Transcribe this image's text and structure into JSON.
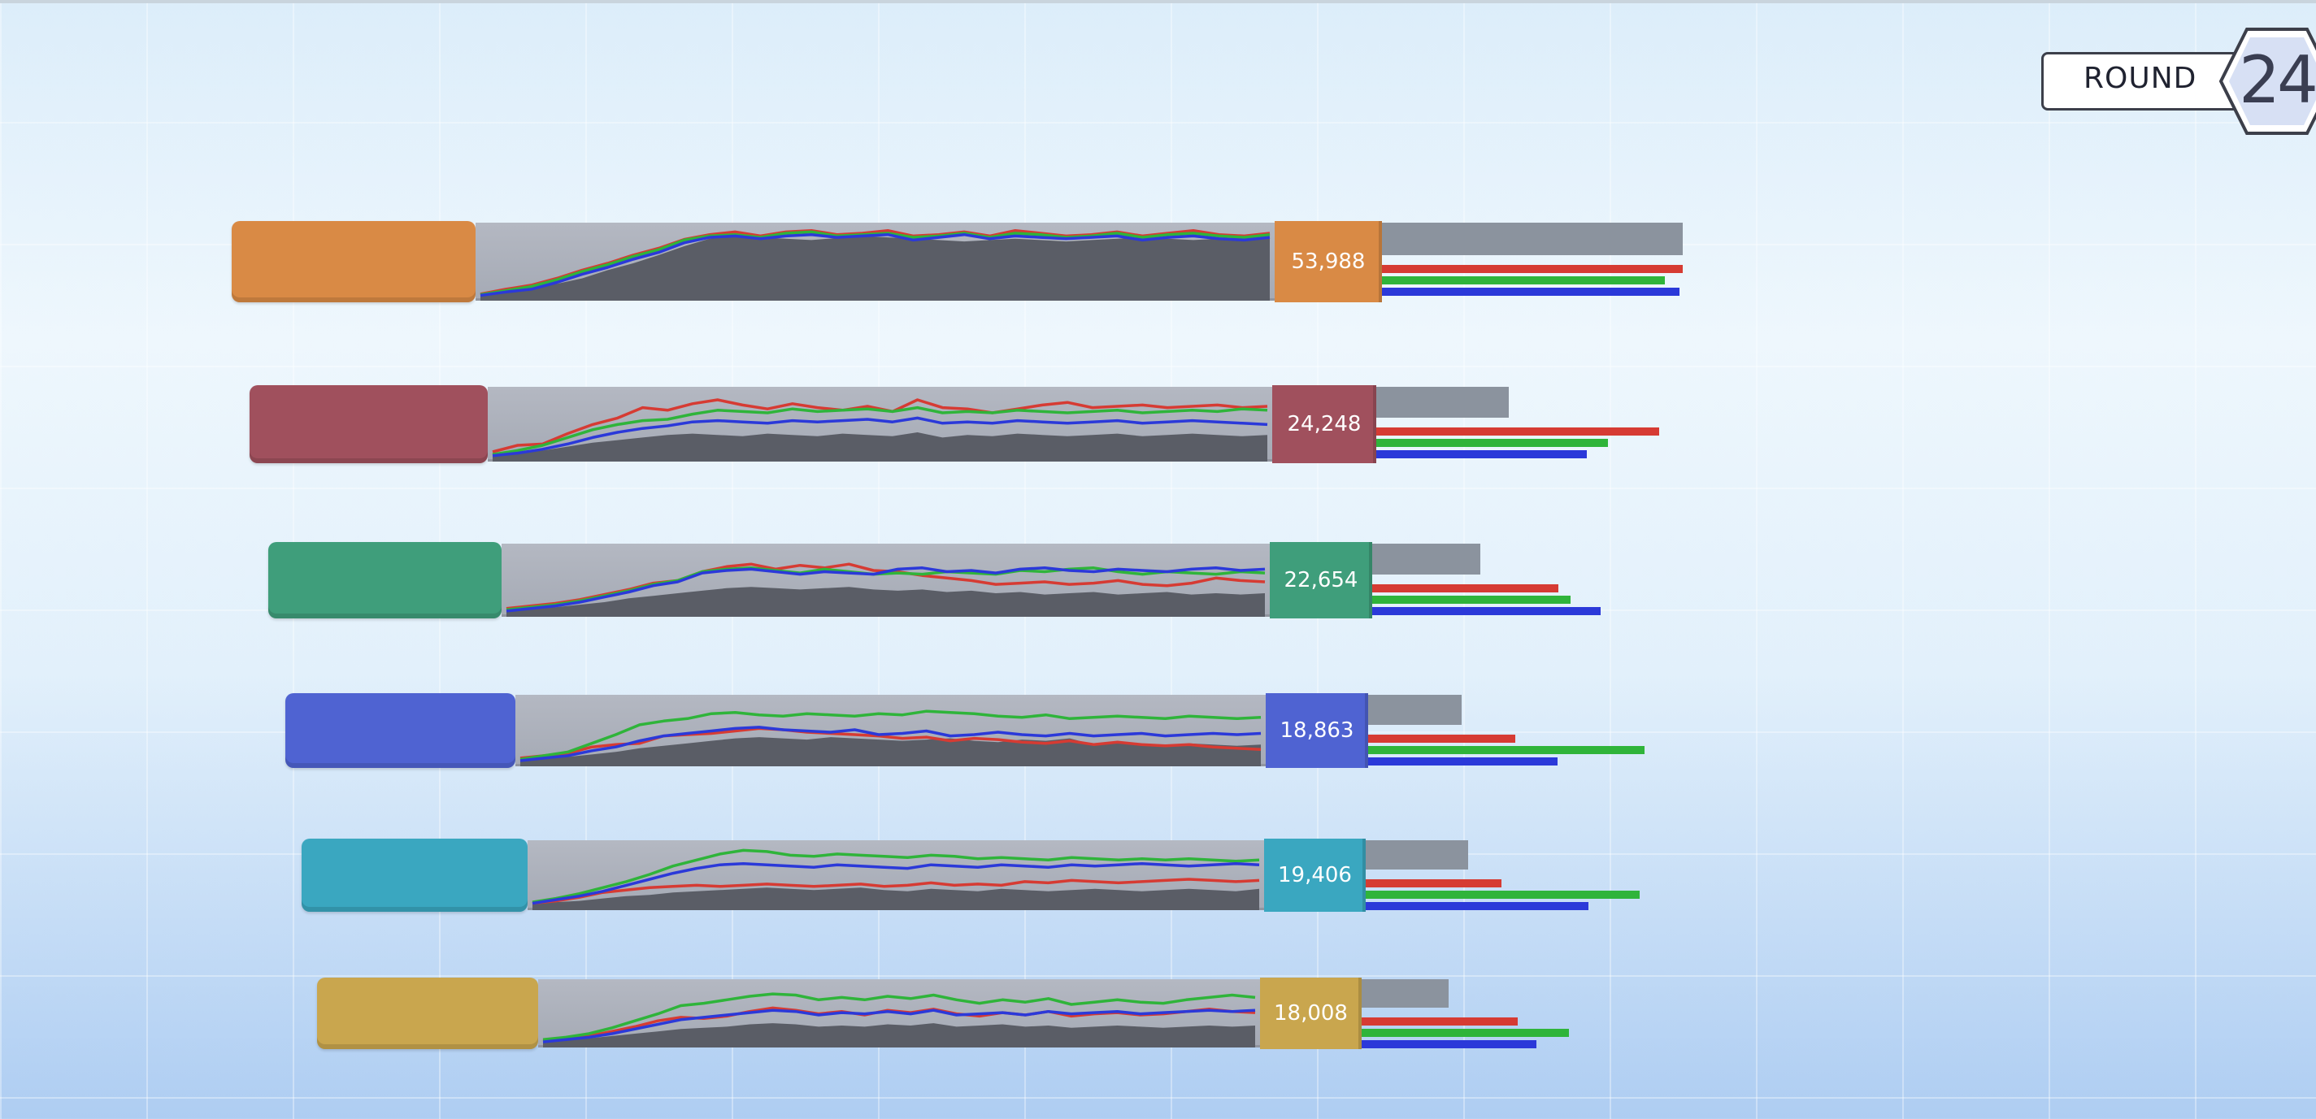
{
  "round": {
    "label": "ROUND",
    "number": "24"
  },
  "series_colors": {
    "gray": "#8b939e",
    "red": "#d63b33",
    "green": "#2fb43a",
    "blue": "#2b39d9"
  },
  "players": [
    {
      "color": "#d98a45",
      "score": "53,988",
      "metrics": {
        "gray": 1.0,
        "red": 1.0,
        "green": 0.94,
        "blue": 0.99
      },
      "history": {
        "area": [
          0.05,
          0.08,
          0.12,
          0.2,
          0.28,
          0.4,
          0.5,
          0.62,
          0.75,
          0.86,
          0.9,
          0.88,
          0.86,
          0.84,
          0.87,
          0.9,
          0.88,
          0.86,
          0.84,
          0.82,
          0.84,
          0.86,
          0.84,
          0.82,
          0.84,
          0.86,
          0.88,
          0.86,
          0.84,
          0.86,
          0.88,
          0.86
        ],
        "red": [
          0.05,
          0.12,
          0.18,
          0.28,
          0.4,
          0.5,
          0.62,
          0.72,
          0.85,
          0.92,
          0.96,
          0.9,
          0.96,
          0.98,
          0.92,
          0.94,
          0.98,
          0.9,
          0.92,
          0.96,
          0.9,
          0.98,
          0.94,
          0.9,
          0.92,
          0.96,
          0.9,
          0.94,
          0.98,
          0.92,
          0.9,
          0.94
        ],
        "green": [
          0.04,
          0.1,
          0.16,
          0.26,
          0.38,
          0.48,
          0.6,
          0.7,
          0.84,
          0.9,
          0.92,
          0.88,
          0.94,
          0.96,
          0.9,
          0.92,
          0.94,
          0.88,
          0.9,
          0.94,
          0.88,
          0.94,
          0.92,
          0.88,
          0.9,
          0.94,
          0.88,
          0.92,
          0.94,
          0.9,
          0.88,
          0.92
        ],
        "blue": [
          0.03,
          0.08,
          0.12,
          0.22,
          0.34,
          0.44,
          0.56,
          0.66,
          0.8,
          0.88,
          0.9,
          0.86,
          0.9,
          0.92,
          0.88,
          0.9,
          0.92,
          0.84,
          0.88,
          0.92,
          0.86,
          0.9,
          0.88,
          0.86,
          0.88,
          0.9,
          0.84,
          0.88,
          0.9,
          0.86,
          0.84,
          0.88
        ]
      }
    },
    {
      "color": "#a0505d",
      "score": "24,248",
      "metrics": {
        "gray": 0.44,
        "red": 0.94,
        "green": 0.77,
        "blue": 0.7
      },
      "history": {
        "area": [
          0.05,
          0.08,
          0.12,
          0.18,
          0.24,
          0.28,
          0.32,
          0.36,
          0.38,
          0.36,
          0.34,
          0.38,
          0.36,
          0.34,
          0.38,
          0.36,
          0.34,
          0.4,
          0.32,
          0.36,
          0.34,
          0.38,
          0.36,
          0.34,
          0.36,
          0.38,
          0.34,
          0.36,
          0.38,
          0.36,
          0.34,
          0.36
        ],
        "red": [
          0.1,
          0.2,
          0.22,
          0.38,
          0.52,
          0.62,
          0.78,
          0.74,
          0.84,
          0.9,
          0.82,
          0.76,
          0.84,
          0.78,
          0.74,
          0.8,
          0.72,
          0.9,
          0.78,
          0.76,
          0.7,
          0.76,
          0.82,
          0.86,
          0.78,
          0.8,
          0.82,
          0.78,
          0.8,
          0.82,
          0.78,
          0.8
        ],
        "green": [
          0.06,
          0.12,
          0.2,
          0.32,
          0.44,
          0.52,
          0.58,
          0.6,
          0.68,
          0.74,
          0.72,
          0.7,
          0.76,
          0.72,
          0.74,
          0.76,
          0.72,
          0.78,
          0.7,
          0.72,
          0.7,
          0.74,
          0.72,
          0.7,
          0.72,
          0.74,
          0.7,
          0.72,
          0.74,
          0.72,
          0.76,
          0.74
        ],
        "blue": [
          0.04,
          0.08,
          0.14,
          0.22,
          0.32,
          0.4,
          0.46,
          0.5,
          0.56,
          0.58,
          0.56,
          0.54,
          0.58,
          0.56,
          0.58,
          0.6,
          0.56,
          0.62,
          0.54,
          0.56,
          0.54,
          0.58,
          0.56,
          0.54,
          0.56,
          0.58,
          0.54,
          0.56,
          0.58,
          0.56,
          0.54,
          0.52
        ]
      }
    },
    {
      "color": "#3f9e7b",
      "score": "22,654",
      "metrics": {
        "gray": 0.36,
        "red": 0.62,
        "green": 0.66,
        "blue": 0.76
      },
      "history": {
        "area": [
          0.05,
          0.08,
          0.1,
          0.14,
          0.18,
          0.24,
          0.28,
          0.32,
          0.36,
          0.4,
          0.42,
          0.4,
          0.38,
          0.4,
          0.42,
          0.38,
          0.36,
          0.38,
          0.34,
          0.36,
          0.32,
          0.34,
          0.3,
          0.32,
          0.34,
          0.3,
          0.32,
          0.34,
          0.3,
          0.32,
          0.3,
          0.32
        ],
        "red": [
          0.08,
          0.12,
          0.16,
          0.22,
          0.3,
          0.38,
          0.48,
          0.52,
          0.66,
          0.74,
          0.78,
          0.7,
          0.76,
          0.72,
          0.78,
          0.68,
          0.66,
          0.6,
          0.56,
          0.52,
          0.46,
          0.48,
          0.5,
          0.46,
          0.48,
          0.52,
          0.46,
          0.44,
          0.48,
          0.56,
          0.52,
          0.5
        ],
        "green": [
          0.06,
          0.1,
          0.14,
          0.2,
          0.28,
          0.36,
          0.46,
          0.52,
          0.66,
          0.7,
          0.72,
          0.68,
          0.64,
          0.7,
          0.66,
          0.62,
          0.64,
          0.62,
          0.66,
          0.64,
          0.62,
          0.68,
          0.66,
          0.7,
          0.72,
          0.66,
          0.62,
          0.66,
          0.64,
          0.62,
          0.66,
          0.64
        ],
        "blue": [
          0.04,
          0.08,
          0.12,
          0.18,
          0.26,
          0.34,
          0.44,
          0.5,
          0.64,
          0.68,
          0.7,
          0.66,
          0.62,
          0.66,
          0.64,
          0.62,
          0.7,
          0.72,
          0.66,
          0.68,
          0.64,
          0.7,
          0.72,
          0.68,
          0.66,
          0.7,
          0.68,
          0.66,
          0.7,
          0.72,
          0.68,
          0.7
        ]
      }
    },
    {
      "color": "#4f63d2",
      "score": "18,863",
      "metrics": {
        "gray": 0.31,
        "red": 0.49,
        "green": 0.92,
        "blue": 0.63
      },
      "history": {
        "area": [
          0.05,
          0.08,
          0.1,
          0.14,
          0.18,
          0.24,
          0.28,
          0.32,
          0.36,
          0.4,
          0.42,
          0.4,
          0.38,
          0.42,
          0.4,
          0.38,
          0.36,
          0.38,
          0.4,
          0.36,
          0.34,
          0.38,
          0.36,
          0.4,
          0.3,
          0.34,
          0.32,
          0.28,
          0.32,
          0.3,
          0.28,
          0.3
        ],
        "red": [
          0.08,
          0.12,
          0.16,
          0.26,
          0.3,
          0.32,
          0.44,
          0.46,
          0.48,
          0.52,
          0.56,
          0.54,
          0.5,
          0.48,
          0.46,
          0.44,
          0.4,
          0.42,
          0.36,
          0.4,
          0.38,
          0.34,
          0.32,
          0.36,
          0.3,
          0.34,
          0.3,
          0.28,
          0.3,
          0.26,
          0.24,
          0.22
        ],
        "green": [
          0.06,
          0.12,
          0.18,
          0.32,
          0.46,
          0.62,
          0.68,
          0.72,
          0.8,
          0.82,
          0.78,
          0.76,
          0.8,
          0.78,
          0.76,
          0.8,
          0.78,
          0.84,
          0.82,
          0.8,
          0.76,
          0.74,
          0.78,
          0.72,
          0.74,
          0.76,
          0.74,
          0.72,
          0.76,
          0.74,
          0.72,
          0.74
        ],
        "blue": [
          0.04,
          0.08,
          0.12,
          0.2,
          0.26,
          0.36,
          0.44,
          0.48,
          0.52,
          0.56,
          0.58,
          0.54,
          0.52,
          0.5,
          0.54,
          0.46,
          0.48,
          0.52,
          0.44,
          0.46,
          0.5,
          0.46,
          0.44,
          0.48,
          0.44,
          0.46,
          0.48,
          0.44,
          0.46,
          0.48,
          0.46,
          0.48
        ]
      }
    },
    {
      "color": "#3aa7c0",
      "score": "19,406",
      "metrics": {
        "gray": 0.34,
        "red": 0.45,
        "green": 0.91,
        "blue": 0.74
      },
      "history": {
        "area": [
          0.05,
          0.08,
          0.1,
          0.14,
          0.18,
          0.2,
          0.24,
          0.26,
          0.28,
          0.3,
          0.32,
          0.3,
          0.28,
          0.3,
          0.32,
          0.28,
          0.26,
          0.3,
          0.28,
          0.26,
          0.3,
          0.28,
          0.26,
          0.28,
          0.3,
          0.28,
          0.26,
          0.28,
          0.3,
          0.28,
          0.26,
          0.3
        ],
        "red": [
          0.06,
          0.1,
          0.16,
          0.24,
          0.28,
          0.32,
          0.34,
          0.36,
          0.34,
          0.36,
          0.38,
          0.36,
          0.34,
          0.36,
          0.38,
          0.34,
          0.36,
          0.4,
          0.36,
          0.38,
          0.36,
          0.42,
          0.4,
          0.44,
          0.42,
          0.4,
          0.42,
          0.44,
          0.46,
          0.44,
          0.42,
          0.44
        ],
        "green": [
          0.08,
          0.14,
          0.22,
          0.32,
          0.42,
          0.54,
          0.68,
          0.78,
          0.88,
          0.94,
          0.92,
          0.86,
          0.84,
          0.88,
          0.86,
          0.84,
          0.82,
          0.86,
          0.84,
          0.8,
          0.82,
          0.8,
          0.78,
          0.82,
          0.8,
          0.78,
          0.8,
          0.78,
          0.8,
          0.78,
          0.76,
          0.78
        ],
        "blue": [
          0.06,
          0.12,
          0.18,
          0.26,
          0.36,
          0.46,
          0.56,
          0.64,
          0.7,
          0.72,
          0.7,
          0.68,
          0.66,
          0.7,
          0.68,
          0.66,
          0.64,
          0.7,
          0.68,
          0.66,
          0.7,
          0.68,
          0.66,
          0.7,
          0.68,
          0.7,
          0.72,
          0.7,
          0.68,
          0.7,
          0.72,
          0.7
        ]
      }
    },
    {
      "color": "#c9a64e",
      "score": "18,008",
      "metrics": {
        "gray": 0.29,
        "red": 0.52,
        "green": 0.69,
        "blue": 0.58
      },
      "history": {
        "area": [
          0.05,
          0.08,
          0.1,
          0.14,
          0.18,
          0.22,
          0.26,
          0.28,
          0.3,
          0.34,
          0.36,
          0.34,
          0.3,
          0.32,
          0.3,
          0.34,
          0.32,
          0.36,
          0.3,
          0.32,
          0.34,
          0.3,
          0.32,
          0.28,
          0.3,
          0.32,
          0.3,
          0.28,
          0.3,
          0.32,
          0.3,
          0.32
        ],
        "red": [
          0.06,
          0.1,
          0.14,
          0.22,
          0.3,
          0.4,
          0.46,
          0.44,
          0.48,
          0.56,
          0.62,
          0.58,
          0.52,
          0.56,
          0.5,
          0.58,
          0.54,
          0.6,
          0.52,
          0.48,
          0.54,
          0.5,
          0.56,
          0.48,
          0.52,
          0.54,
          0.5,
          0.52,
          0.56,
          0.6,
          0.56,
          0.54
        ],
        "green": [
          0.08,
          0.12,
          0.18,
          0.28,
          0.4,
          0.52,
          0.66,
          0.7,
          0.76,
          0.82,
          0.86,
          0.84,
          0.76,
          0.8,
          0.76,
          0.82,
          0.78,
          0.84,
          0.76,
          0.7,
          0.76,
          0.72,
          0.78,
          0.68,
          0.72,
          0.76,
          0.72,
          0.7,
          0.76,
          0.8,
          0.84,
          0.8
        ],
        "blue": [
          0.04,
          0.08,
          0.12,
          0.18,
          0.26,
          0.34,
          0.42,
          0.46,
          0.5,
          0.54,
          0.58,
          0.56,
          0.5,
          0.54,
          0.52,
          0.56,
          0.52,
          0.58,
          0.5,
          0.52,
          0.54,
          0.5,
          0.56,
          0.52,
          0.54,
          0.56,
          0.52,
          0.54,
          0.56,
          0.58,
          0.56,
          0.58
        ]
      }
    }
  ]
}
